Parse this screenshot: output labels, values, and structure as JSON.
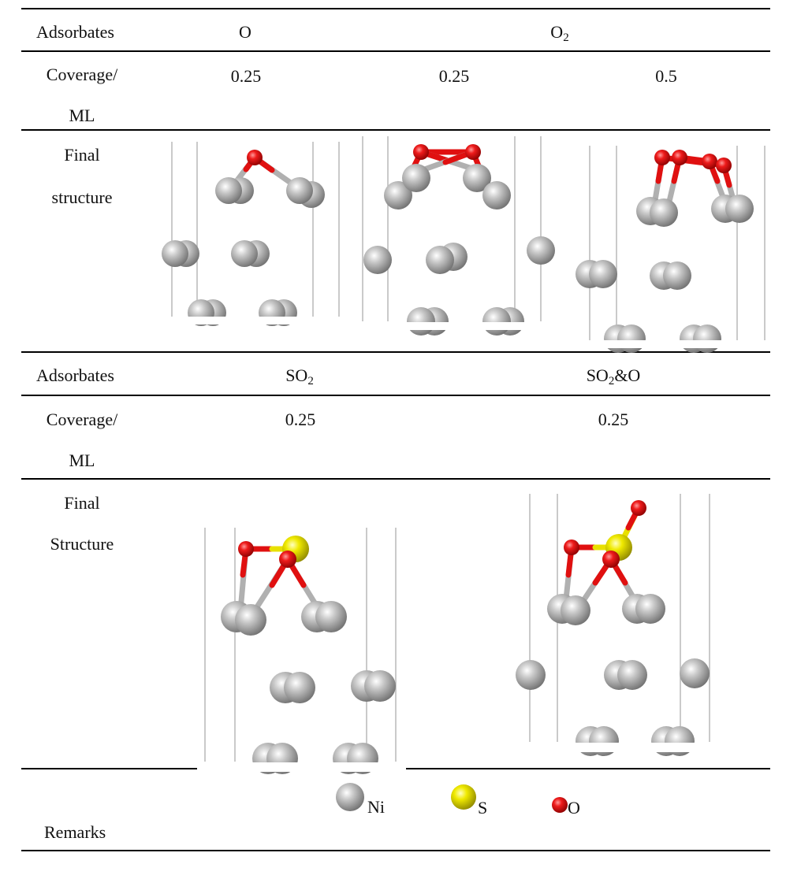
{
  "rows": {
    "adsorbates_label": "Adsorbates",
    "coverage_label_1": "Coverage/",
    "coverage_label_2": "ML",
    "final_label_1": "Final",
    "final_structure_label_top": "structure",
    "final_structure_label_bottom": "Structure",
    "remarks_label": "Remarks"
  },
  "top_block": {
    "adsorbate_o": "O",
    "adsorbate_o2_base": "O",
    "adsorbate_o2_sub": "2",
    "coverages": [
      "0.25",
      "0.25",
      "0.5"
    ]
  },
  "bottom_block": {
    "adsorbate_so2_base": "SO",
    "adsorbate_so2_sub": "2",
    "adsorbate_so2o_base": "SO",
    "adsorbate_so2o_sub": "2",
    "adsorbate_so2o_tail": "&O",
    "coverages": [
      "0.25",
      "0.25"
    ]
  },
  "legend": {
    "ni_label": "Ni",
    "s_label": "S",
    "o_label": "O"
  },
  "colors": {
    "ni": "#a9a9a9",
    "s": "#e8e000",
    "o": "#e01010",
    "rule": "#000000",
    "cell_edge": "#b8b8b8"
  }
}
